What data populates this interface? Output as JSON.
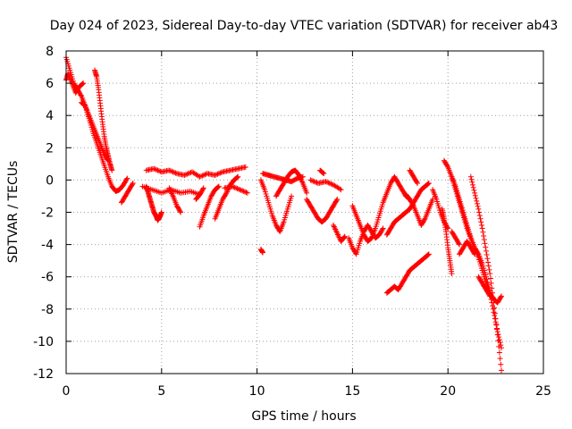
{
  "chart_data": {
    "type": "scatter",
    "title": "Day 024 of 2023, Sidereal Day-to-day VTEC variation (SDTVAR) for receiver ab43",
    "xlabel": "GPS time / hours",
    "ylabel": "SDTVAR / TECUs",
    "xlim": [
      0,
      25
    ],
    "ylim": [
      -12,
      8
    ],
    "xticks": [
      0,
      5,
      10,
      15,
      20,
      25
    ],
    "yticks": [
      -12,
      -10,
      -8,
      -6,
      -4,
      -2,
      0,
      2,
      4,
      6,
      8
    ],
    "grid": true,
    "marker": "+",
    "color": "#ff0000",
    "series": [
      {
        "name": "s1",
        "x": [
          0.0,
          0.2,
          0.4,
          0.6,
          0.8,
          1.0,
          1.2,
          1.4,
          1.6,
          1.8,
          2.0,
          2.2,
          2.4,
          2.6,
          2.8,
          3.0,
          3.2
        ],
        "y": [
          7.6,
          6.8,
          6.0,
          5.6,
          5.2,
          4.6,
          3.8,
          3.0,
          2.3,
          1.6,
          0.9,
          0.2,
          -0.4,
          -0.7,
          -0.6,
          -0.3,
          0.1
        ]
      },
      {
        "name": "s2",
        "x": [
          0.0,
          0.1,
          0.3,
          0.5,
          0.7,
          0.9
        ],
        "y": [
          6.2,
          6.6,
          6.0,
          5.4,
          5.8,
          6.0
        ]
      },
      {
        "name": "s3",
        "x": [
          1.5,
          1.6,
          1.7,
          1.8,
          1.9,
          2.0,
          2.1,
          2.2,
          2.3,
          2.4
        ],
        "y": [
          6.8,
          6.4,
          5.6,
          4.6,
          3.6,
          2.7,
          2.0,
          1.5,
          1.0,
          0.6
        ]
      },
      {
        "name": "s4",
        "x": [
          0.8,
          1.0,
          1.2,
          1.4,
          1.6,
          1.8,
          2.0,
          2.2
        ],
        "y": [
          4.8,
          4.6,
          4.0,
          3.4,
          2.8,
          2.2,
          1.6,
          1.2
        ]
      },
      {
        "name": "s5",
        "x": [
          2.9,
          3.1,
          3.3,
          3.5
        ],
        "y": [
          -1.4,
          -1.0,
          -0.6,
          -0.2
        ]
      },
      {
        "name": "s6",
        "x": [
          4.2,
          4.3,
          4.4,
          4.5,
          4.6,
          4.7,
          4.8,
          4.9,
          5.0
        ],
        "y": [
          -0.4,
          -0.8,
          -1.2,
          -1.6,
          -2.0,
          -2.2,
          -2.5,
          -2.3,
          -2.0
        ]
      },
      {
        "name": "s7",
        "x": [
          4.2,
          4.6,
          5.0,
          5.4,
          5.8,
          6.2,
          6.6,
          7.0,
          7.4,
          7.8,
          8.2,
          8.6,
          9.0,
          9.4
        ],
        "y": [
          0.6,
          0.7,
          0.5,
          0.6,
          0.4,
          0.3,
          0.5,
          0.2,
          0.4,
          0.3,
          0.5,
          0.6,
          0.7,
          0.8
        ]
      },
      {
        "name": "s8",
        "x": [
          4.0,
          4.5,
          5.0,
          5.5,
          6.0,
          6.5,
          7.0
        ],
        "y": [
          -0.4,
          -0.6,
          -0.8,
          -0.6,
          -0.8,
          -0.7,
          -0.9
        ]
      },
      {
        "name": "s9",
        "x": [
          5.4,
          5.6,
          5.8,
          6.0
        ],
        "y": [
          -0.5,
          -1.0,
          -1.6,
          -2.0
        ]
      },
      {
        "name": "s10",
        "x": [
          7.0,
          7.2,
          7.4,
          7.6,
          7.8,
          8.0
        ],
        "y": [
          -2.9,
          -2.2,
          -1.6,
          -1.0,
          -0.6,
          -0.4
        ]
      },
      {
        "name": "s11",
        "x": [
          7.8,
          8.0,
          8.2,
          8.4,
          8.6,
          8.8,
          9.0
        ],
        "y": [
          -2.4,
          -1.8,
          -1.2,
          -0.8,
          -0.3,
          0.0,
          0.2
        ]
      },
      {
        "name": "s12",
        "x": [
          6.8,
          7.0,
          7.2
        ],
        "y": [
          -1.2,
          -0.9,
          -0.5
        ]
      },
      {
        "name": "s13",
        "x": [
          8.3,
          8.7,
          9.1,
          9.5
        ],
        "y": [
          -0.5,
          -0.4,
          -0.6,
          -0.8
        ]
      },
      {
        "name": "s14",
        "x": [
          10.2,
          10.4,
          10.6,
          10.8,
          11.0,
          11.2,
          11.4,
          11.6,
          11.8
        ],
        "y": [
          0.0,
          -0.6,
          -1.4,
          -2.2,
          -2.8,
          -3.2,
          -2.6,
          -1.8,
          -1.0
        ]
      },
      {
        "name": "s15",
        "x": [
          10.3,
          10.6,
          10.9,
          11.2,
          11.5,
          11.8,
          12.1,
          12.4
        ],
        "y": [
          0.4,
          0.3,
          0.2,
          0.1,
          0.0,
          -0.1,
          0.1,
          0.2
        ]
      },
      {
        "name": "s16",
        "x": [
          11.0,
          11.2,
          11.4,
          11.6,
          11.8,
          12.0,
          12.2,
          12.4,
          12.6
        ],
        "y": [
          -1.0,
          -0.6,
          -0.2,
          0.2,
          0.5,
          0.6,
          0.3,
          -0.2,
          -0.8
        ]
      },
      {
        "name": "s17",
        "x": [
          12.6,
          12.8,
          13.0,
          13.2,
          13.4,
          13.6,
          13.8,
          14.0,
          14.2
        ],
        "y": [
          -1.2,
          -1.6,
          -2.0,
          -2.4,
          -2.6,
          -2.4,
          -2.0,
          -1.6,
          -1.2
        ]
      },
      {
        "name": "s18",
        "x": [
          12.8,
          13.2,
          13.6,
          14.0,
          14.4
        ],
        "y": [
          0.0,
          -0.2,
          -0.1,
          -0.3,
          -0.6
        ]
      },
      {
        "name": "s19",
        "x": [
          13.3,
          13.5
        ],
        "y": [
          0.6,
          0.4
        ]
      },
      {
        "name": "s20",
        "x": [
          10.2,
          10.3
        ],
        "y": [
          -4.3,
          -4.5
        ]
      },
      {
        "name": "s21",
        "x": [
          14.0,
          14.2,
          14.4,
          14.6
        ],
        "y": [
          -2.8,
          -3.3,
          -3.8,
          -3.5
        ]
      },
      {
        "name": "s22",
        "x": [
          14.8,
          15.0,
          15.2,
          15.4,
          15.6,
          15.8,
          16.0,
          16.2,
          16.4,
          16.6
        ],
        "y": [
          -3.6,
          -4.2,
          -4.6,
          -3.8,
          -3.2,
          -2.8,
          -3.2,
          -3.6,
          -3.4,
          -3.0
        ]
      },
      {
        "name": "s23",
        "x": [
          15.0,
          15.2,
          15.4,
          15.6,
          15.8,
          16.0,
          16.2,
          16.4,
          16.6,
          16.8,
          17.0,
          17.2,
          17.4,
          17.6,
          17.8,
          18.0
        ],
        "y": [
          -1.6,
          -2.2,
          -2.8,
          -3.4,
          -3.8,
          -3.6,
          -3.0,
          -2.2,
          -1.4,
          -0.8,
          -0.2,
          0.2,
          -0.2,
          -0.6,
          -1.0,
          -1.2
        ]
      },
      {
        "name": "s24",
        "x": [
          16.8,
          17.0,
          17.2,
          17.4,
          17.6,
          17.8,
          18.0,
          18.2,
          18.4,
          18.6,
          18.8,
          19.0
        ],
        "y": [
          -3.4,
          -3.0,
          -2.6,
          -2.4,
          -2.2,
          -2.0,
          -1.8,
          -1.4,
          -1.0,
          -0.6,
          -0.4,
          -0.2
        ]
      },
      {
        "name": "s25",
        "x": [
          17.8,
          18.0,
          18.2,
          18.4,
          18.6,
          18.8,
          19.0,
          19.2
        ],
        "y": [
          -0.9,
          -1.2,
          -1.6,
          -2.2,
          -2.8,
          -2.4,
          -1.8,
          -1.2
        ]
      },
      {
        "name": "s26",
        "x": [
          18.0,
          18.2,
          18.4
        ],
        "y": [
          0.6,
          0.2,
          -0.2
        ]
      },
      {
        "name": "s27",
        "x": [
          16.8,
          17.0,
          17.2,
          17.4,
          17.6,
          17.8,
          18.0,
          18.2,
          18.4,
          18.6,
          18.8,
          19.0
        ],
        "y": [
          -7.0,
          -6.8,
          -6.6,
          -6.8,
          -6.4,
          -6.0,
          -5.6,
          -5.4,
          -5.2,
          -5.0,
          -4.8,
          -4.6
        ]
      },
      {
        "name": "s28",
        "x": [
          19.2,
          19.4,
          19.6,
          19.8,
          20.0
        ],
        "y": [
          -0.6,
          -1.2,
          -2.0,
          -2.6,
          -3.0
        ]
      },
      {
        "name": "s29",
        "x": [
          19.7,
          19.8,
          19.9,
          20.0,
          20.1,
          20.2
        ],
        "y": [
          -1.8,
          -2.4,
          -3.2,
          -4.2,
          -5.0,
          -5.8
        ]
      },
      {
        "name": "s30",
        "x": [
          19.8,
          20.0,
          20.2,
          20.4,
          20.6,
          20.8,
          21.0,
          21.2,
          21.4,
          21.6,
          21.8,
          22.0,
          22.2,
          22.4,
          22.6,
          22.8
        ],
        "y": [
          1.2,
          0.8,
          0.2,
          -0.6,
          -1.4,
          -2.2,
          -3.0,
          -3.6,
          -4.2,
          -4.8,
          -5.6,
          -6.4,
          -7.0,
          -7.4,
          -7.6,
          -7.2
        ]
      },
      {
        "name": "s31",
        "x": [
          20.2,
          20.4,
          20.6,
          20.8,
          21.0,
          21.2,
          21.4,
          21.6,
          21.8,
          22.0,
          22.2,
          22.4,
          22.6,
          22.8
        ],
        "y": [
          0.2,
          -0.4,
          -1.2,
          -2.0,
          -2.8,
          -3.6,
          -4.2,
          -4.6,
          -5.2,
          -6.0,
          -7.0,
          -8.2,
          -9.4,
          -10.4
        ]
      },
      {
        "name": "s32",
        "x": [
          21.2,
          21.4,
          21.6,
          21.8,
          22.0,
          22.2,
          22.4,
          22.6,
          22.8
        ],
        "y": [
          0.2,
          -0.8,
          -1.8,
          -3.0,
          -4.4,
          -5.8,
          -7.6,
          -9.6,
          -11.8
        ]
      },
      {
        "name": "s33",
        "x": [
          20.6,
          20.8,
          21.0,
          21.2,
          21.4
        ],
        "y": [
          -4.6,
          -4.2,
          -3.8,
          -4.2,
          -4.6
        ]
      },
      {
        "name": "s34",
        "x": [
          21.6,
          21.8,
          22.0,
          22.2
        ],
        "y": [
          -6.0,
          -6.4,
          -6.8,
          -7.2
        ]
      },
      {
        "name": "s35",
        "x": [
          20.2,
          20.4,
          20.6
        ],
        "y": [
          -3.2,
          -3.6,
          -4.0
        ]
      }
    ]
  }
}
